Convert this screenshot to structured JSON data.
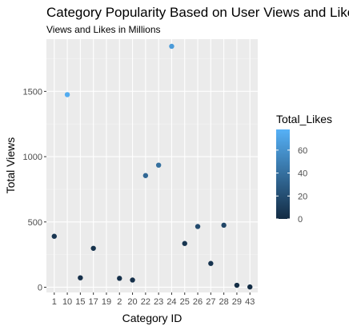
{
  "chart_data": {
    "type": "scatter",
    "title": "Category Popularity Based on User Views and Likes",
    "subtitle": "Views and Likes in Millions",
    "xlabel": "Category ID",
    "ylabel": "Total Views",
    "categories": [
      "1",
      "10",
      "15",
      "17",
      "19",
      "2",
      "20",
      "22",
      "23",
      "24",
      "25",
      "26",
      "27",
      "28",
      "29",
      "43"
    ],
    "ylim": [
      -40,
      1900
    ],
    "yticks": [
      0,
      500,
      1000,
      1500
    ],
    "grid": true,
    "legend": {
      "title": "Total_Likes",
      "position": "right",
      "range": [
        0,
        78
      ],
      "ticks": [
        0,
        20,
        40,
        60
      ],
      "low_color": "#132B43",
      "high_color": "#56B1F7"
    },
    "points": [
      {
        "x": "1",
        "y": 390,
        "likes": 6
      },
      {
        "x": "10",
        "y": 1475,
        "likes": 75
      },
      {
        "x": "15",
        "y": 72,
        "likes": 3
      },
      {
        "x": "17",
        "y": 298,
        "likes": 4
      },
      {
        "x": "2",
        "y": 68,
        "likes": 3
      },
      {
        "x": "20",
        "y": 55,
        "likes": 3
      },
      {
        "x": "22",
        "y": 855,
        "likes": 35
      },
      {
        "x": "23",
        "y": 935,
        "likes": 40
      },
      {
        "x": "24",
        "y": 1845,
        "likes": 65
      },
      {
        "x": "25",
        "y": 335,
        "likes": 5
      },
      {
        "x": "26",
        "y": 465,
        "likes": 18
      },
      {
        "x": "27",
        "y": 182,
        "likes": 5
      },
      {
        "x": "28",
        "y": 475,
        "likes": 15
      },
      {
        "x": "29",
        "y": 15,
        "likes": 1
      },
      {
        "x": "43",
        "y": 2,
        "likes": 1
      }
    ]
  }
}
